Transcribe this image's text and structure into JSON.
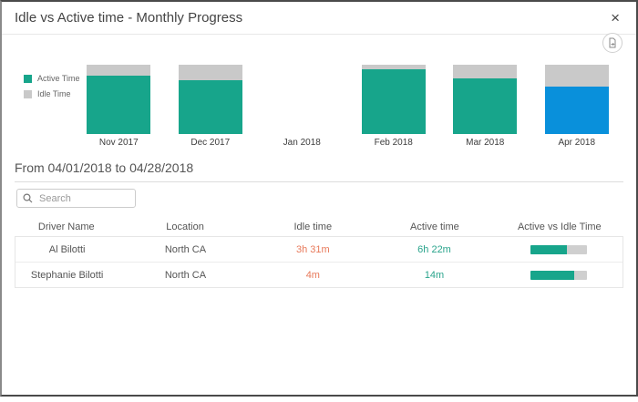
{
  "modal": {
    "title": "Idle vs Active time - Monthly Progress",
    "close_label": "×"
  },
  "colors": {
    "active": "#17a58b",
    "active_selected": "#0990db",
    "idle": "#c9c9c9",
    "idle_text": "#e8795a",
    "active_text": "#2aa48c"
  },
  "legend": [
    {
      "label": "Active Time",
      "color": "#17a58b"
    },
    {
      "label": "Idle Time",
      "color": "#c9c9c9"
    }
  ],
  "chart_data": {
    "type": "bar",
    "stacked": true,
    "percent_stacked": true,
    "categories": [
      "Nov 2017",
      "Dec 2017",
      "Jan 2018",
      "Feb 2018",
      "Mar 2018",
      "Apr 2018"
    ],
    "series": [
      {
        "name": "Active Time",
        "values": [
          84,
          78,
          null,
          93,
          80,
          68
        ]
      },
      {
        "name": "Idle Time",
        "values": [
          16,
          22,
          null,
          7,
          20,
          32
        ]
      }
    ],
    "highlighted_category": "Apr 2018",
    "legend_position": "left",
    "ylim": [
      0,
      100
    ]
  },
  "filter": {
    "range_label": "From 04/01/2018 to 04/28/2018"
  },
  "search": {
    "placeholder": "Search"
  },
  "table": {
    "headers": [
      "Driver Name",
      "Location",
      "Idle time",
      "Active time",
      "Active vs Idle Time"
    ],
    "rows": [
      {
        "driver": "Al Bilotti",
        "location": "North CA",
        "idle_time": "3h 31m",
        "active_time": "6h 22m",
        "active_pct": 64
      },
      {
        "driver": "Stephanie Bilotti",
        "location": "North CA",
        "idle_time": "4m",
        "active_time": "14m",
        "active_pct": 78
      }
    ]
  }
}
